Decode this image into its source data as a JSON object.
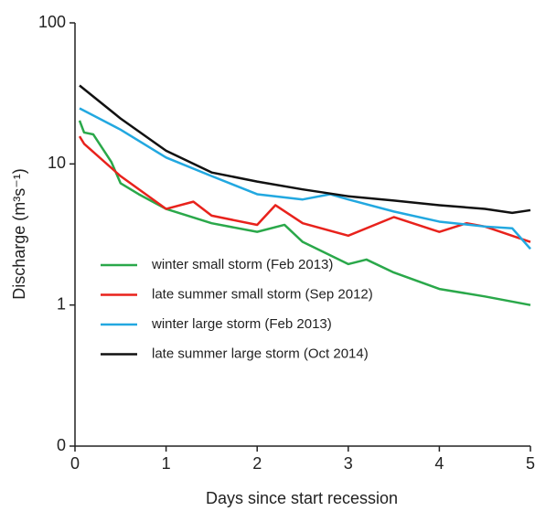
{
  "chart_data": {
    "type": "line",
    "xlabel": "Days since start recession",
    "ylabel": "Discharge (m³s⁻¹)",
    "log_y": true,
    "xlim": [
      0,
      5
    ],
    "xticks": [
      0,
      1,
      2,
      3,
      4,
      5
    ],
    "ylim": [
      0.1,
      100
    ],
    "yticks": [
      {
        "value": 0.1,
        "label": "0"
      },
      1,
      10,
      100
    ],
    "legend": "lower left",
    "series": [
      {
        "name": "winter small storm (Feb 2013)",
        "color": "#2aa84a",
        "x": [
          0.05,
          0.1,
          0.2,
          0.4,
          0.5,
          0.7,
          1,
          1.5,
          2,
          2.3,
          2.5,
          3,
          3.2,
          3.5,
          4,
          4.5,
          5
        ],
        "values": [
          20.3,
          16.7,
          16.2,
          10.3,
          7.3,
          6.1,
          4.8,
          3.8,
          3.3,
          3.7,
          2.8,
          1.95,
          2.1,
          1.7,
          1.3,
          1.15,
          1.0
        ]
      },
      {
        "name": "late summer small storm (Sep 2012)",
        "color": "#e8221c",
        "x": [
          0.05,
          0.1,
          0.5,
          1,
          1.3,
          1.5,
          2,
          2.2,
          2.5,
          3,
          3.5,
          4,
          4.3,
          4.5,
          5
        ],
        "values": [
          15.7,
          13.9,
          8.2,
          4.8,
          5.4,
          4.3,
          3.7,
          5.1,
          3.8,
          3.1,
          4.2,
          3.3,
          3.8,
          3.6,
          2.8
        ]
      },
      {
        "name": "winter large storm (Feb 2013)",
        "color": "#22a8e0",
        "x": [
          0.05,
          0.5,
          1,
          1.5,
          2,
          2.5,
          2.8,
          3,
          3.5,
          4,
          4.5,
          4.8,
          5
        ],
        "values": [
          24.8,
          17.5,
          11.1,
          8.2,
          6.1,
          5.6,
          6.1,
          5.6,
          4.6,
          3.9,
          3.6,
          3.5,
          2.5
        ]
      },
      {
        "name": "late summer large storm (Oct 2014)",
        "color": "#111111",
        "x": [
          0.05,
          0.5,
          1,
          1.5,
          2,
          2.5,
          3,
          3.5,
          4,
          4.5,
          4.8,
          5
        ],
        "values": [
          36,
          21,
          12.4,
          8.7,
          7.5,
          6.6,
          5.9,
          5.5,
          5.1,
          4.8,
          4.5,
          4.7
        ]
      }
    ]
  }
}
